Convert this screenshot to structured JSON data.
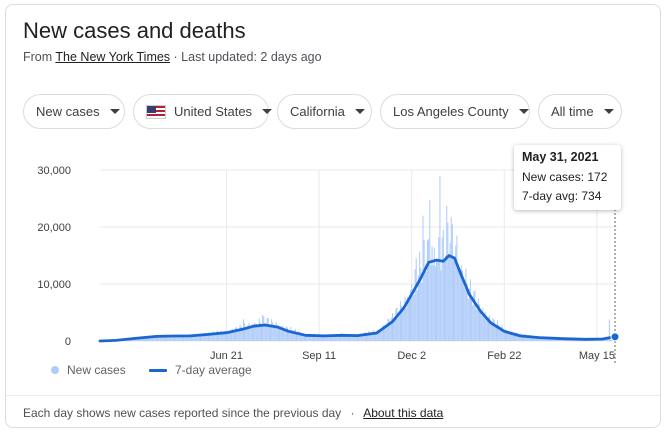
{
  "header": {
    "title": "New cases and deaths",
    "source_prefix": "From ",
    "source_name": "The New York Times",
    "updated": " · Last updated: 2 days ago"
  },
  "filters": [
    {
      "label": "New cases"
    },
    {
      "label": "United States",
      "icon": "us-flag-icon"
    },
    {
      "label": "California"
    },
    {
      "label": "Los Angeles County"
    },
    {
      "label": "All time"
    }
  ],
  "tooltip": {
    "date": "May 31, 2021",
    "new_cases": "New cases: 172",
    "avg": "7-day avg: 734"
  },
  "legend": {
    "new_cases": "New cases",
    "avg": "7-day average"
  },
  "footer": {
    "note": "Each day shows new cases reported since the previous day",
    "separator": "·",
    "link": "About this data"
  },
  "colors": {
    "bars": "#aecbfa",
    "line": "#1a66d2",
    "grid": "#e8eaed",
    "axis_text": "#3c4043"
  },
  "chart_data": {
    "type": "bar",
    "title": "New cases and deaths",
    "x_range": [
      "2020-03-01",
      "2021-05-31"
    ],
    "y_range": [
      0,
      30000
    ],
    "y_ticks": [
      {
        "value": 0,
        "label": "0"
      },
      {
        "value": 10000,
        "label": "10,000"
      },
      {
        "value": 20000,
        "label": "20,000"
      },
      {
        "value": 30000,
        "label": "30,000"
      }
    ],
    "x_ticks": [
      {
        "date": "2020-06-21",
        "label": "Jun 21"
      },
      {
        "date": "2020-09-11",
        "label": "Sep 11"
      },
      {
        "date": "2020-12-02",
        "label": "Dec 2"
      },
      {
        "date": "2021-02-22",
        "label": "Feb 22"
      },
      {
        "date": "2021-05-15",
        "label": "May 15"
      }
    ],
    "grid": true,
    "legend_position": "bottom-left",
    "series": [
      {
        "name": "7-day average",
        "type": "line",
        "points": [
          [
            "2020-03-01",
            0
          ],
          [
            "2020-03-15",
            100
          ],
          [
            "2020-04-01",
            450
          ],
          [
            "2020-04-20",
            800
          ],
          [
            "2020-05-05",
            870
          ],
          [
            "2020-05-20",
            900
          ],
          [
            "2020-06-05",
            1150
          ],
          [
            "2020-06-21",
            1450
          ],
          [
            "2020-07-05",
            2050
          ],
          [
            "2020-07-15",
            2600
          ],
          [
            "2020-07-25",
            2800
          ],
          [
            "2020-08-05",
            2450
          ],
          [
            "2020-08-15",
            1700
          ],
          [
            "2020-08-30",
            1000
          ],
          [
            "2020-09-15",
            900
          ],
          [
            "2020-10-01",
            1000
          ],
          [
            "2020-10-15",
            950
          ],
          [
            "2020-11-01",
            1400
          ],
          [
            "2020-11-15",
            3400
          ],
          [
            "2020-11-25",
            5800
          ],
          [
            "2020-12-02",
            8200
          ],
          [
            "2020-12-10",
            11000
          ],
          [
            "2020-12-17",
            13800
          ],
          [
            "2020-12-24",
            14200
          ],
          [
            "2020-12-30",
            14000
          ],
          [
            "2021-01-04",
            15000
          ],
          [
            "2021-01-09",
            14500
          ],
          [
            "2021-01-15",
            11500
          ],
          [
            "2021-01-22",
            8200
          ],
          [
            "2021-02-01",
            5200
          ],
          [
            "2021-02-10",
            3200
          ],
          [
            "2021-02-22",
            1700
          ],
          [
            "2021-03-08",
            900
          ],
          [
            "2021-03-25",
            600
          ],
          [
            "2021-04-15",
            400
          ],
          [
            "2021-05-05",
            300
          ],
          [
            "2021-05-20",
            350
          ],
          [
            "2021-05-31",
            734
          ]
        ]
      },
      {
        "name": "New cases",
        "type": "bar",
        "points": [
          [
            "2020-03-01",
            0
          ],
          [
            "2020-03-15",
            150
          ],
          [
            "2020-04-01",
            500
          ],
          [
            "2020-04-20",
            850
          ],
          [
            "2020-05-05",
            950
          ],
          [
            "2020-05-20",
            1000
          ],
          [
            "2020-06-05",
            1300
          ],
          [
            "2020-06-21",
            1700
          ],
          [
            "2020-07-05",
            2400
          ],
          [
            "2020-07-15",
            3200
          ],
          [
            "2020-07-25",
            3600
          ],
          [
            "2020-08-05",
            3000
          ],
          [
            "2020-08-15",
            2100
          ],
          [
            "2020-08-30",
            1200
          ],
          [
            "2020-09-15",
            1000
          ],
          [
            "2020-10-01",
            1100
          ],
          [
            "2020-10-15",
            1050
          ],
          [
            "2020-11-01",
            1700
          ],
          [
            "2020-11-15",
            4000
          ],
          [
            "2020-11-25",
            6800
          ],
          [
            "2020-12-02",
            9500
          ],
          [
            "2020-12-10",
            13000
          ],
          [
            "2020-12-17",
            17000
          ],
          [
            "2020-12-24",
            15500
          ],
          [
            "2020-12-30",
            16500
          ],
          [
            "2021-01-04",
            19500
          ],
          [
            "2021-01-09",
            16000
          ],
          [
            "2021-01-15",
            13000
          ],
          [
            "2021-01-22",
            9000
          ],
          [
            "2021-02-01",
            6000
          ],
          [
            "2021-02-10",
            3800
          ],
          [
            "2021-02-22",
            2000
          ],
          [
            "2021-03-08",
            1100
          ],
          [
            "2021-03-25",
            700
          ],
          [
            "2021-04-15",
            450
          ],
          [
            "2021-05-05",
            350
          ],
          [
            "2021-05-20",
            450
          ],
          [
            "2021-05-31",
            172
          ]
        ],
        "spikes": [
          [
            "2020-12-27",
            29000
          ],
          [
            "2020-12-18",
            24700
          ],
          [
            "2020-12-12",
            22000
          ],
          [
            "2021-01-02",
            23700
          ],
          [
            "2021-01-07",
            20500
          ],
          [
            "2021-01-11",
            18500
          ],
          [
            "2020-07-23",
            4600
          ],
          [
            "2020-07-06",
            3800
          ],
          [
            "2020-11-12",
            3800
          ],
          [
            "2021-05-26",
            3800
          ],
          [
            "2020-12-06",
            14500
          ]
        ]
      }
    ],
    "highlight": {
      "date": "2021-05-31",
      "new_cases": 172,
      "avg": 734
    }
  }
}
